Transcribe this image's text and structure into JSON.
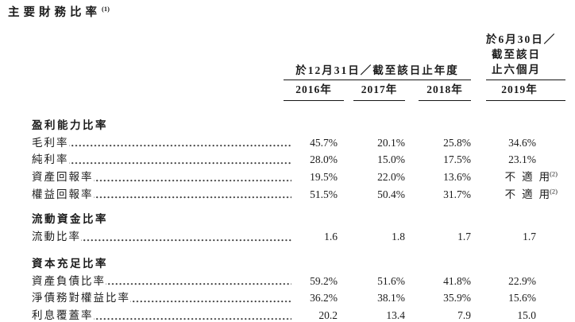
{
  "document": {
    "title": "主要財務比率",
    "title_footnote": "(1)"
  },
  "table": {
    "header": {
      "annual_group_label": "於12月31日／截至該日止年度",
      "interim_line1": "於6月30日／",
      "interim_line2": "截至該日",
      "interim_line3": "止六個月",
      "years": [
        "2016年",
        "2017年",
        "2018年",
        "2019年"
      ]
    },
    "sections": [
      {
        "title": "盈利能力比率",
        "rows": [
          {
            "label": "毛利率",
            "values": [
              "45.7%",
              "20.1%",
              "25.8%",
              "34.6%"
            ]
          },
          {
            "label": "純利率",
            "values": [
              "28.0%",
              "15.0%",
              "17.5%",
              "23.1%"
            ]
          },
          {
            "label": "資產回報率",
            "values": [
              "19.5%",
              "22.0%",
              "13.6%",
              "不適用"
            ],
            "note": "(2)"
          },
          {
            "label": "權益回報率",
            "values": [
              "51.5%",
              "50.4%",
              "31.7%",
              "不適用"
            ],
            "note": "(2)"
          }
        ]
      },
      {
        "title": "流動資金比率",
        "rows": [
          {
            "label": "流動比率",
            "values": [
              "1.6",
              "1.8",
              "1.7",
              "1.7"
            ]
          }
        ]
      },
      {
        "title": "資本充足比率",
        "rows": [
          {
            "label": "資產負債比率",
            "values": [
              "59.2%",
              "51.6%",
              "41.8%",
              "22.9%"
            ]
          },
          {
            "label": "淨債務對權益比率",
            "values": [
              "36.2%",
              "38.1%",
              "35.9%",
              "15.6%"
            ]
          },
          {
            "label": "利息覆蓋率",
            "values": [
              "20.2",
              "13.4",
              "7.9",
              "15.0"
            ]
          }
        ]
      }
    ]
  }
}
